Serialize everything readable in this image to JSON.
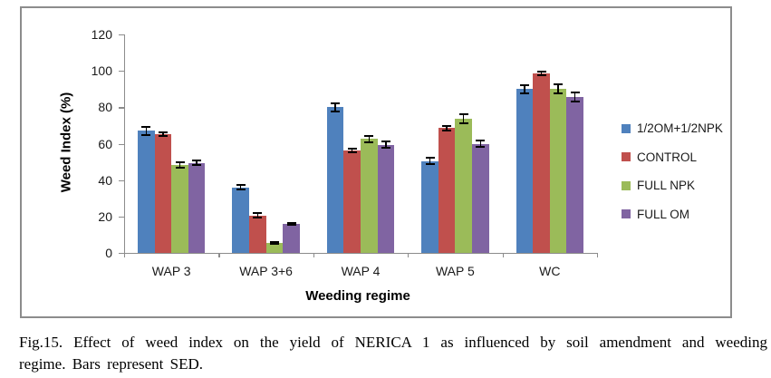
{
  "figure": {
    "caption_line1": "Fig.15. Effect of weed index on the yield of NERICA 1 as influenced by soil amendment and weeding",
    "caption_line2": "regime. Bars represent SED."
  },
  "chart_data": {
    "type": "bar",
    "title": "",
    "xlabel": "Weeding regime",
    "ylabel": "Weed Index (%)",
    "categories": [
      "WAP 3",
      "WAP 3+6",
      "WAP 4",
      "WAP 5",
      "WC"
    ],
    "series": [
      {
        "name": "1/2OM+1/2NPK",
        "color": "#4f81bd",
        "values": [
          67,
          36,
          80,
          50.5,
          90
        ],
        "errors": [
          2.2,
          1.2,
          2.2,
          1.6,
          2.2
        ]
      },
      {
        "name": "CONTROL",
        "color": "#c0504d",
        "values": [
          65,
          20.5,
          56.5,
          68.5,
          98.5
        ],
        "errors": [
          1.0,
          1.2,
          1.0,
          1.2,
          1.0
        ]
      },
      {
        "name": "FULL NPK",
        "color": "#9bbb59",
        "values": [
          48.5,
          5.5,
          62.5,
          73.5,
          90
        ],
        "errors": [
          1.5,
          0.6,
          1.8,
          2.5,
          2.5
        ]
      },
      {
        "name": "FULL OM",
        "color": "#8064a2",
        "values": [
          49.5,
          16,
          59.5,
          60,
          85.5
        ],
        "errors": [
          1.2,
          0.6,
          1.5,
          1.6,
          2.5
        ]
      }
    ],
    "ylim": [
      0,
      120
    ],
    "ytick_step": 20,
    "ytick_labels": [
      "0",
      "20",
      "40",
      "60",
      "80",
      "100",
      "120"
    ],
    "grid": false,
    "legend_position": "right",
    "error_bars": "SED"
  },
  "colors": {
    "axis": "#8c8c8c",
    "frame_border": "#8c8c8c",
    "error_bar": "#000000",
    "text": "#1a1a1a"
  }
}
